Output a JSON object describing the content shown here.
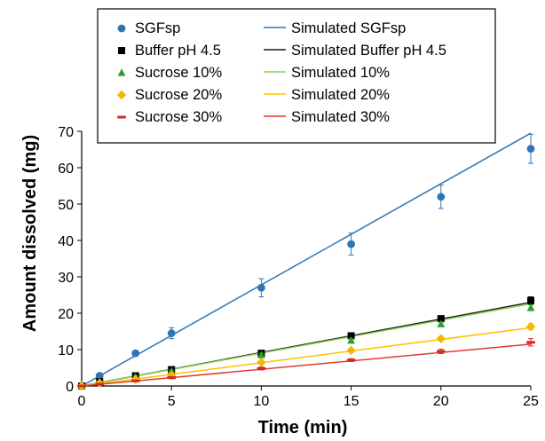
{
  "chart_data": {
    "type": "scatter",
    "xlabel": "Time (min)",
    "ylabel": "Amount dissolved (mg)",
    "xlim": [
      0,
      25
    ],
    "ylim": [
      0,
      70
    ],
    "xticks": [
      0,
      5,
      10,
      15,
      20,
      25
    ],
    "yticks": [
      0,
      10,
      20,
      30,
      40,
      50,
      60,
      70
    ],
    "grid": false,
    "legend_position": "top-left",
    "series": [
      {
        "name": "SGFsp",
        "marker": "circle",
        "color": "#2e75b6",
        "x": [
          0,
          1,
          3,
          5,
          10,
          15,
          20,
          25
        ],
        "y": [
          0,
          2.8,
          9,
          14.5,
          27,
          39,
          52,
          65.2
        ],
        "error": [
          0,
          0.4,
          0.6,
          1.5,
          2.5,
          3,
          3.2,
          4
        ]
      },
      {
        "name": "Buffer pH 4.5",
        "marker": "square",
        "color": "#000000",
        "x": [
          0,
          1,
          3,
          5,
          10,
          15,
          20,
          25
        ],
        "y": [
          0,
          1.2,
          2.8,
          4.5,
          9,
          13.8,
          18.5,
          23.5
        ],
        "error": [
          0,
          0.2,
          0.3,
          0.4,
          0.5,
          0.6,
          0.8,
          1
        ]
      },
      {
        "name": "Sucrose 10%",
        "marker": "triangle",
        "color": "#2ca02c",
        "x": [
          0,
          1,
          3,
          5,
          10,
          15,
          20,
          25
        ],
        "y": [
          0,
          1.1,
          2.5,
          4,
          8.5,
          12.5,
          17,
          21.5
        ],
        "error": [
          0,
          0.2,
          0.3,
          0.4,
          0.5,
          0.5,
          0.6,
          0.8
        ]
      },
      {
        "name": "Sucrose 20%",
        "marker": "diamond",
        "color": "#f5b800",
        "x": [
          0,
          1,
          3,
          5,
          10,
          15,
          20,
          25
        ],
        "y": [
          0,
          0.8,
          1.8,
          3,
          6.5,
          9.8,
          13,
          16.3
        ],
        "error": [
          0,
          0.2,
          0.2,
          0.3,
          0.4,
          0.5,
          0.6,
          0.8
        ]
      },
      {
        "name": "Sucrose 30%",
        "marker": "dash",
        "color": "#d62728",
        "x": [
          0,
          1,
          3,
          5,
          10,
          15,
          20,
          25
        ],
        "y": [
          0,
          0.5,
          1.4,
          2.3,
          4.8,
          7.1,
          9.5,
          12
        ],
        "error": [
          0,
          0.2,
          0.2,
          0.3,
          0.4,
          0.4,
          0.6,
          1
        ]
      }
    ],
    "simulated": [
      {
        "name": "Simulated SGFsp",
        "color": "#2e75b6",
        "x": [
          0,
          25
        ],
        "y": [
          0,
          69.5
        ]
      },
      {
        "name": "Simulated Buffer pH 4.5",
        "color": "#1a1a1a",
        "x": [
          0,
          25
        ],
        "y": [
          0,
          23
        ]
      },
      {
        "name": "Simulated 10%",
        "color": "#8fd14f",
        "x": [
          0,
          25
        ],
        "y": [
          0,
          22.6
        ]
      },
      {
        "name": "Simulated 20%",
        "color": "#ffc000",
        "x": [
          0,
          25
        ],
        "y": [
          0,
          16
        ]
      },
      {
        "name": "Simulated 30%",
        "color": "#e03c31",
        "x": [
          0,
          25
        ],
        "y": [
          0,
          11.5
        ]
      }
    ]
  }
}
